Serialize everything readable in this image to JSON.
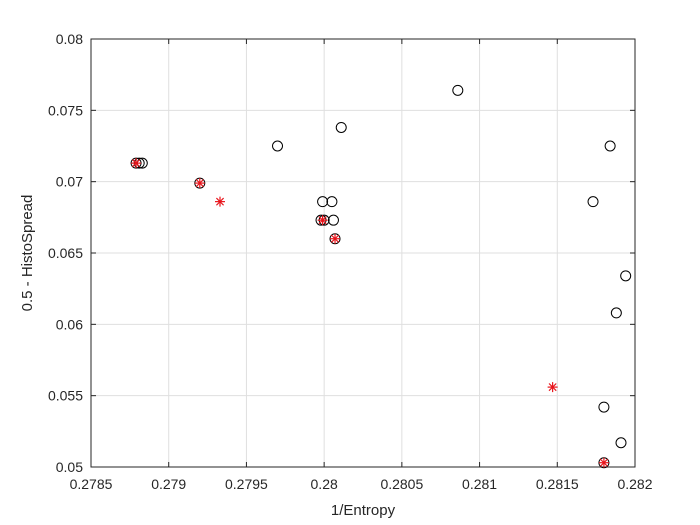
{
  "chart_data": {
    "type": "scatter",
    "title": "",
    "xlabel": "1/Entropy",
    "ylabel": "0.5 - HistoSpread",
    "xlim": [
      0.2785,
      0.282
    ],
    "ylim": [
      0.05,
      0.08
    ],
    "grid": true,
    "x_ticks": [
      0.2785,
      0.279,
      0.2795,
      0.28,
      0.2805,
      0.281,
      0.2815,
      0.282
    ],
    "x_tick_labels": [
      "0.2785",
      "0.279",
      "0.2795",
      "0.28",
      "0.2805",
      "0.281",
      "0.2815",
      "0.282"
    ],
    "y_ticks": [
      0.05,
      0.055,
      0.06,
      0.065,
      0.07,
      0.075,
      0.08
    ],
    "y_tick_labels": [
      "0.05",
      "0.055",
      "0.06",
      "0.065",
      "0.07",
      "0.075",
      "0.08"
    ],
    "series": [
      {
        "marker": "circle",
        "color": "#000000",
        "points": [
          [
            0.27879,
            0.0713
          ],
          [
            0.27881,
            0.0713
          ],
          [
            0.27883,
            0.0713
          ],
          [
            0.2792,
            0.0699
          ],
          [
            0.2797,
            0.0725
          ],
          [
            0.27999,
            0.0686
          ],
          [
            0.28005,
            0.0686
          ],
          [
            0.27998,
            0.0673
          ],
          [
            0.28,
            0.0673
          ],
          [
            0.28006,
            0.0673
          ],
          [
            0.28007,
            0.066
          ],
          [
            0.28011,
            0.0738
          ],
          [
            0.28086,
            0.0764
          ],
          [
            0.28173,
            0.0686
          ],
          [
            0.28184,
            0.0725
          ],
          [
            0.28194,
            0.0634
          ],
          [
            0.28188,
            0.0608
          ],
          [
            0.2818,
            0.0542
          ],
          [
            0.28191,
            0.0517
          ],
          [
            0.2818,
            0.0503
          ]
        ]
      },
      {
        "marker": "asterisk",
        "color": "#e8141b",
        "points": [
          [
            0.27879,
            0.0713
          ],
          [
            0.2792,
            0.0699
          ],
          [
            0.27933,
            0.0686
          ],
          [
            0.27999,
            0.0673
          ],
          [
            0.28007,
            0.066
          ],
          [
            0.28147,
            0.0556
          ],
          [
            0.2818,
            0.0503
          ]
        ]
      }
    ]
  }
}
